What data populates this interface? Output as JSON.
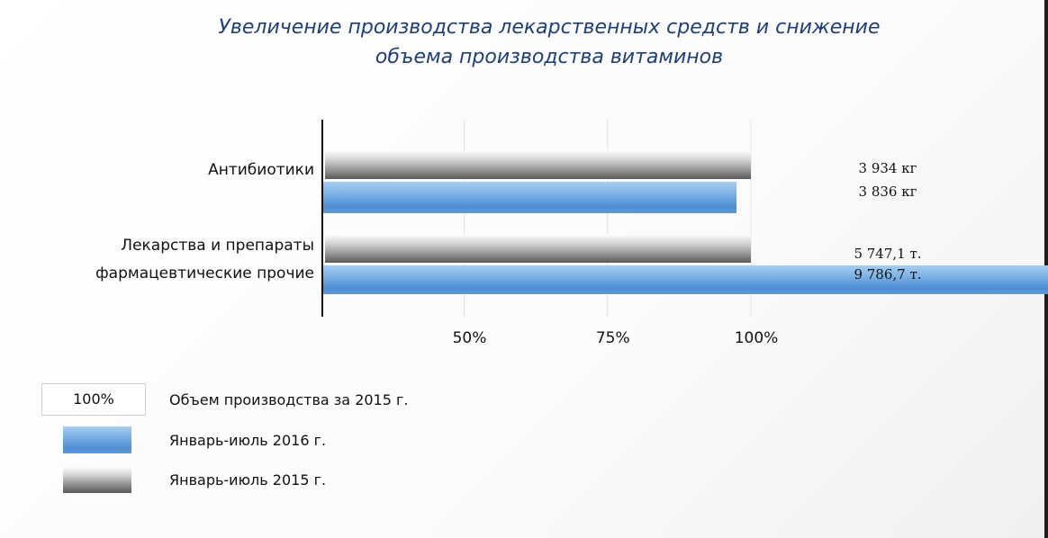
{
  "chart_data": {
    "type": "bar",
    "orientation": "horizontal",
    "title_lines": [
      "Увеличение производства лекарственных средств и снижение",
      "объема производства витаминов"
    ],
    "categories": [
      [
        "Антибиотики"
      ],
      [
        "Лекарства и препараты",
        "фармацевтические прочие"
      ]
    ],
    "series": [
      {
        "name": "Январь-июль 2015 г.",
        "values": [
          100,
          100
        ],
        "labels": [
          "3 934 кг",
          "5 747,1 т."
        ],
        "color": "#9a9a9a"
      },
      {
        "name": "Январь-июль 2016 г.",
        "values": [
          97.5,
          170.3
        ],
        "labels": [
          "3 836 кг",
          "9 786,7 т."
        ],
        "color": "#5b9bd5"
      }
    ],
    "x_ticks": [
      "50%",
      "75%",
      "100%"
    ],
    "x_tick_values": [
      50,
      75,
      100
    ],
    "grid": true,
    "legend_position": "bottom-left"
  },
  "legend": {
    "reference_box": "100%",
    "reference_text": "Объем производства за 2015 г.",
    "items": [
      "Январь-июль 2016 г.",
      "Январь-июль 2015 г."
    ]
  }
}
